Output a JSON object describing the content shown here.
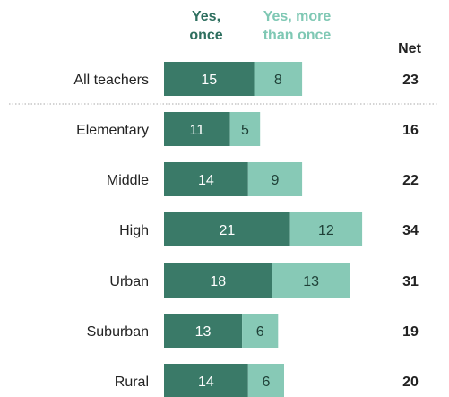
{
  "chart_data": {
    "type": "bar",
    "orientation": "horizontal",
    "stacked": true,
    "categories": [
      "All teachers",
      "Elementary",
      "Middle",
      "High",
      "Urban",
      "Suburban",
      "Rural"
    ],
    "series": [
      {
        "name": "Yes,\nonce",
        "values": [
          15,
          11,
          14,
          21,
          18,
          13,
          14
        ],
        "color": "#3a7a68"
      },
      {
        "name": "Yes, more\nthan once",
        "values": [
          8,
          5,
          9,
          12,
          13,
          6,
          6
        ],
        "color": "#87c9b6"
      }
    ],
    "net_header": "Net",
    "net": [
      23,
      16,
      22,
      34,
      31,
      19,
      20
    ],
    "separators_after": [
      "All teachers",
      "High"
    ],
    "xlim": [
      0,
      34
    ]
  },
  "colors": {
    "once": "#3a7a68",
    "more": "#87c9b6",
    "label": "#222222",
    "separator": "#aaaaaa"
  }
}
